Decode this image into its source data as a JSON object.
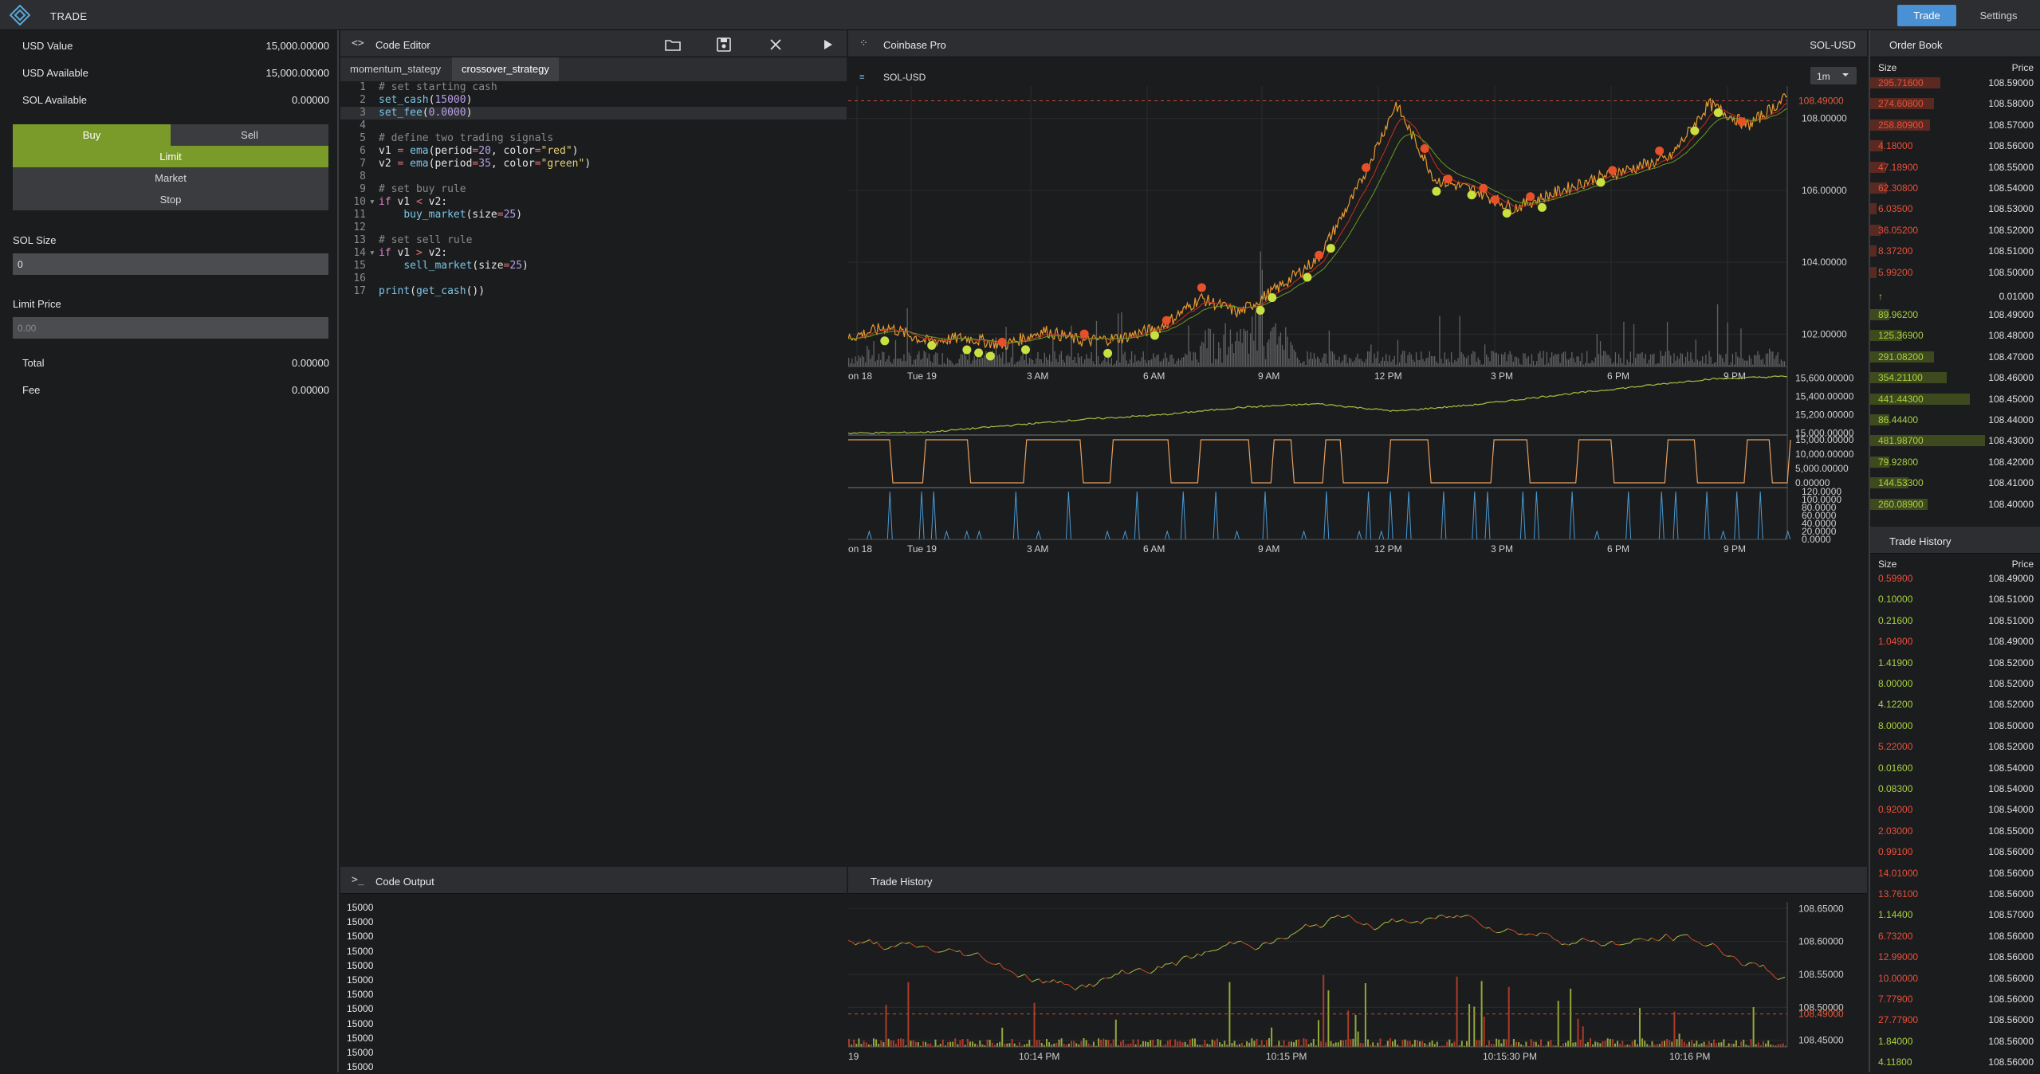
{
  "app": {
    "title": "TRADE",
    "tabs": [
      "Trade",
      "Settings"
    ]
  },
  "account": {
    "rows": [
      {
        "label": "USD Value",
        "value": "15,000.00000"
      },
      {
        "label": "USD Available",
        "value": "15,000.00000"
      },
      {
        "label": "SOL Available",
        "value": "0.00000"
      }
    ],
    "side": {
      "buy": "Buy",
      "sell": "Sell"
    },
    "order_types": [
      "Limit",
      "Market",
      "Stop"
    ],
    "size_label": "SOL Size",
    "size_value": "0",
    "limit_label": "Limit Price",
    "limit_placeholder": "0.00",
    "total_label": "Total",
    "total_value": "0.00000",
    "fee_label": "Fee",
    "fee_value": "0.00000"
  },
  "editor": {
    "title": "Code Editor",
    "files": [
      "momentum_stategy",
      "crossover_strategy"
    ],
    "active_file": 1
  },
  "output": {
    "title": "Code Output",
    "lines": [
      "15000",
      "15000",
      "15000",
      "15000",
      "15000",
      "15000",
      "15000",
      "15000",
      "15000",
      "15000",
      "15000",
      "15000"
    ]
  },
  "chart": {
    "exchange": "Coinbase Pro",
    "pair": "SOL-USD",
    "symbol": "SOL-USD",
    "interval": "1m",
    "last_price": "108.49000"
  },
  "chart_data": [
    {
      "type": "line",
      "title": "SOL-USD",
      "x_ticks": [
        "on 18",
        "Tue 19",
        "3 AM",
        "6 AM",
        "9 AM",
        "12 PM",
        "3 PM",
        "6 PM",
        "9 PM"
      ],
      "y_ticks": [
        "102.00000",
        "104.00000",
        "106.00000",
        "108.00000"
      ],
      "ylim": [
        101.1,
        108.9
      ],
      "series": [
        {
          "name": "",
          "x": [
            0,
            1,
            2,
            3,
            4,
            5,
            6,
            7,
            8,
            9,
            10,
            11,
            12,
            13,
            14,
            15,
            16,
            17,
            18,
            19,
            20,
            21,
            22,
            23,
            24
          ],
          "values": [
            101.9,
            102.2,
            101.8,
            101.9,
            101.7,
            102.1,
            101.8,
            101.9,
            102.2,
            103.0,
            102.6,
            103.3,
            104.1,
            106.0,
            108.4,
            106.3,
            106.0,
            105.5,
            105.9,
            106.3,
            106.6,
            106.9,
            108.4,
            107.8,
            108.6
          ]
        }
      ],
      "annotations": [
        "108.49000"
      ]
    },
    {
      "type": "line",
      "y_ticks": [
        "15,000.00000",
        "15,200.00000",
        "15,400.00000",
        "15,600.00000"
      ],
      "values": [
        15000,
        15010,
        15080,
        15150,
        15200,
        15280,
        15320,
        15240,
        15310,
        15410,
        15500,
        15590,
        15620
      ]
    },
    {
      "type": "line",
      "y_ticks": [
        "0.00000",
        "5,000.00000",
        "10,000.00000",
        "15,000.00000"
      ]
    },
    {
      "type": "line",
      "y_ticks": [
        "0.0000",
        "20.0000",
        "40.0000",
        "60.0000",
        "80.0000",
        "100.0000",
        "120.0000"
      ],
      "x_ticks": [
        "on 18",
        "Tue 19",
        "3 AM",
        "6 AM",
        "9 AM",
        "12 PM",
        "3 PM",
        "6 PM",
        "9 PM"
      ]
    },
    {
      "type": "line",
      "title": "Trade History",
      "x_ticks": [
        "19",
        "10:14 PM",
        "10:15 PM",
        "10:15:30 PM",
        "10:16 PM"
      ],
      "y_ticks": [
        "108.45000",
        "108.50000",
        "108.55000",
        "108.60000",
        "108.65000"
      ],
      "ylim": [
        108.44,
        108.66
      ],
      "annotations": [
        "108.49000"
      ]
    }
  ],
  "orderbook": {
    "title": "Order Book",
    "headers": {
      "size": "Size",
      "price": "Price"
    },
    "asks": [
      {
        "size": "295.71600",
        "price": "108.59000",
        "depth": 0.55
      },
      {
        "size": "274.60800",
        "price": "108.58000",
        "depth": 0.5
      },
      {
        "size": "258.80900",
        "price": "108.57000",
        "depth": 0.47
      },
      {
        "size": "4.18000",
        "price": "108.56000",
        "depth": 0.1
      },
      {
        "size": "47.18900",
        "price": "108.55000",
        "depth": 0.12
      },
      {
        "size": "62.30800",
        "price": "108.54000",
        "depth": 0.13
      },
      {
        "size": "6.03500",
        "price": "108.53000",
        "depth": 0.05
      },
      {
        "size": "36.05200",
        "price": "108.52000",
        "depth": 0.08
      },
      {
        "size": "8.37200",
        "price": "108.51000",
        "depth": 0.05
      },
      {
        "size": "5.99200",
        "price": "108.50000",
        "depth": 0.05
      }
    ],
    "spread": "0.01000",
    "bids": [
      {
        "size": "89.96200",
        "price": "108.49000",
        "depth": 0.15
      },
      {
        "size": "125.36900",
        "price": "108.48000",
        "depth": 0.25
      },
      {
        "size": "291.08200",
        "price": "108.47000",
        "depth": 0.5
      },
      {
        "size": "354.21100",
        "price": "108.46000",
        "depth": 0.6
      },
      {
        "size": "441.44300",
        "price": "108.45000",
        "depth": 0.78
      },
      {
        "size": "86.44400",
        "price": "108.44000",
        "depth": 0.15
      },
      {
        "size": "481.98700",
        "price": "108.43000",
        "depth": 0.9
      },
      {
        "size": "79.92800",
        "price": "108.42000",
        "depth": 0.15
      },
      {
        "size": "144.53300",
        "price": "108.41000",
        "depth": 0.3
      },
      {
        "size": "260.08900",
        "price": "108.40000",
        "depth": 0.45
      }
    ]
  },
  "tradehistory": {
    "title": "Trade History",
    "headers": {
      "size": "Size",
      "price": "Price"
    },
    "rows": [
      {
        "size": "0.59900",
        "price": "108.49000",
        "side": "sell"
      },
      {
        "size": "0.10000",
        "price": "108.51000",
        "side": "buy"
      },
      {
        "size": "0.21600",
        "price": "108.51000",
        "side": "buy"
      },
      {
        "size": "1.04900",
        "price": "108.49000",
        "side": "sell"
      },
      {
        "size": "1.41900",
        "price": "108.52000",
        "side": "buy"
      },
      {
        "size": "8.00000",
        "price": "108.52000",
        "side": "buy"
      },
      {
        "size": "4.12200",
        "price": "108.52000",
        "side": "buy"
      },
      {
        "size": "8.00000",
        "price": "108.50000",
        "side": "buy"
      },
      {
        "size": "5.22000",
        "price": "108.52000",
        "side": "sell"
      },
      {
        "size": "0.01600",
        "price": "108.54000",
        "side": "buy"
      },
      {
        "size": "0.08300",
        "price": "108.54000",
        "side": "buy"
      },
      {
        "size": "0.92000",
        "price": "108.54000",
        "side": "sell"
      },
      {
        "size": "2.03000",
        "price": "108.55000",
        "side": "sell"
      },
      {
        "size": "0.99100",
        "price": "108.56000",
        "side": "sell"
      },
      {
        "size": "14.01000",
        "price": "108.56000",
        "side": "sell"
      },
      {
        "size": "13.76100",
        "price": "108.56000",
        "side": "sell"
      },
      {
        "size": "1.14400",
        "price": "108.57000",
        "side": "buy"
      },
      {
        "size": "6.73200",
        "price": "108.56000",
        "side": "sell"
      },
      {
        "size": "12.99000",
        "price": "108.56000",
        "side": "sell"
      },
      {
        "size": "10.00000",
        "price": "108.56000",
        "side": "sell"
      },
      {
        "size": "7.77900",
        "price": "108.56000",
        "side": "sell"
      },
      {
        "size": "27.77900",
        "price": "108.56000",
        "side": "sell"
      },
      {
        "size": "1.84000",
        "price": "108.56000",
        "side": "buy"
      },
      {
        "size": "4.11800",
        "price": "108.56000",
        "side": "buy"
      }
    ]
  },
  "colors": {
    "buy": "#a8d040",
    "sell": "#e8503a",
    "accent": "#4a90d4",
    "green_button": "#7a9a2a",
    "volume": "#7a7a7a",
    "equity": "#a8c040",
    "position": "#e8a060",
    "rsi": "#4a9ad4"
  }
}
